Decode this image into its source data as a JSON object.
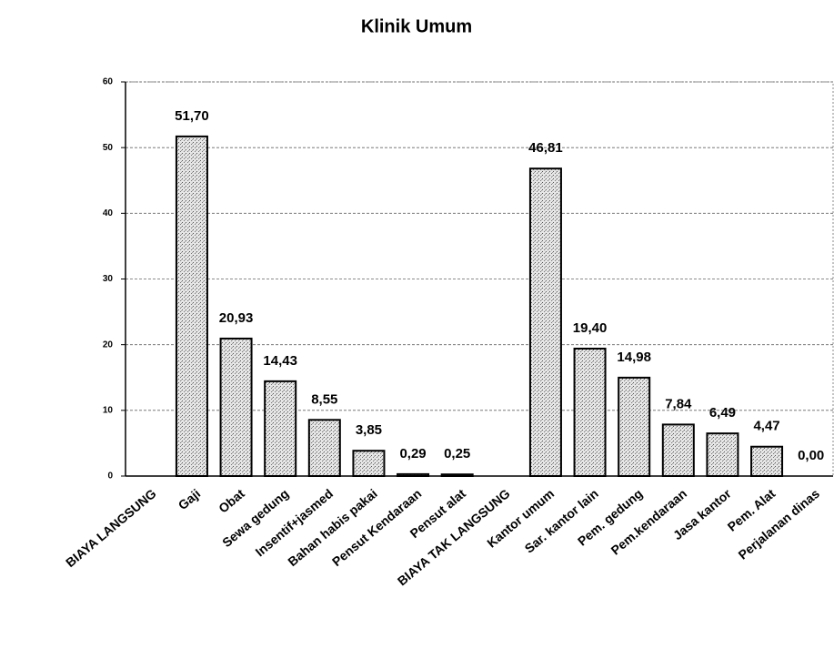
{
  "chart_data": {
    "type": "bar",
    "title": "Klinik Umum",
    "categories": [
      "BIAYA LANGSUNG",
      "Gaji",
      "Obat",
      "Sewa gedung",
      "Insentif+jasmed",
      "Bahan habis pakai",
      "Pensut Kendaraan",
      "Pensut alat",
      "BIAYA TAK LANGSUNG",
      "Kantor umum",
      "Sar. kantor lain",
      "Pem. gedung",
      "Pem.kendaraan",
      "Jasa kantor",
      "Pem. Alat",
      "Perjalanan dinas"
    ],
    "values": [
      null,
      51.7,
      20.93,
      14.43,
      8.55,
      3.85,
      0.29,
      0.25,
      null,
      46.81,
      19.4,
      14.98,
      7.84,
      6.49,
      4.47,
      0.0
    ],
    "value_labels": [
      null,
      "51,70",
      "20,93",
      "14,43",
      "8,55",
      "3,85",
      "0,29",
      "0,25",
      null,
      "46,81",
      "19,40",
      "14,98",
      "7,84",
      "6,49",
      "4,47",
      "0,00"
    ],
    "color": "#c8c8c8",
    "ylim": [
      0,
      60
    ],
    "yticks": [
      0,
      10,
      20,
      30,
      40,
      50,
      60
    ],
    "grid": true
  }
}
